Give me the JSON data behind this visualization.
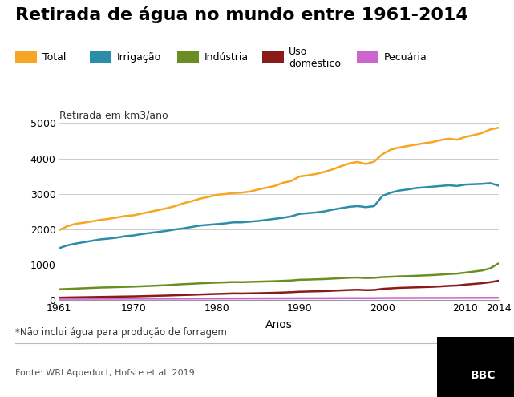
{
  "title": "Retirada de água no mundo entre 1961-2014",
  "ylabel": "Retirada em km3/ano",
  "xlabel": "Anos",
  "footnote": "*Não inclui água para produção de forragem",
  "source": "Fonte: WRI Aqueduct, Hofste et al. 2019",
  "bbc_logo": "BBC",
  "legend_labels": [
    "Total",
    "Irrigação",
    "Indústria",
    "Uso\ndoméstico",
    "Pecuária"
  ],
  "colors": {
    "Total": "#F5A623",
    "Irrigação": "#2B8DA8",
    "Indústria": "#6B8E23",
    "Uso doméstico": "#8B1A1A",
    "Pecuária": "#CC66CC"
  },
  "years": [
    1961,
    1962,
    1963,
    1964,
    1965,
    1966,
    1967,
    1968,
    1969,
    1970,
    1971,
    1972,
    1973,
    1974,
    1975,
    1976,
    1977,
    1978,
    1979,
    1980,
    1981,
    1982,
    1983,
    1984,
    1985,
    1986,
    1987,
    1988,
    1989,
    1990,
    1991,
    1992,
    1993,
    1994,
    1995,
    1996,
    1997,
    1998,
    1999,
    2000,
    2001,
    2002,
    2003,
    2004,
    2005,
    2006,
    2007,
    2008,
    2009,
    2010,
    2011,
    2012,
    2013,
    2014
  ],
  "Total": [
    1970,
    2080,
    2150,
    2180,
    2220,
    2260,
    2290,
    2330,
    2370,
    2390,
    2440,
    2490,
    2540,
    2590,
    2650,
    2730,
    2790,
    2860,
    2910,
    2970,
    2990,
    3020,
    3030,
    3060,
    3120,
    3170,
    3220,
    3310,
    3360,
    3490,
    3520,
    3560,
    3620,
    3690,
    3780,
    3860,
    3900,
    3840,
    3910,
    4120,
    4250,
    4310,
    4350,
    4390,
    4430,
    4460,
    4520,
    4560,
    4530,
    4610,
    4660,
    4720,
    4820,
    4870
  ],
  "Irrigação": [
    1460,
    1540,
    1590,
    1630,
    1670,
    1710,
    1730,
    1760,
    1800,
    1820,
    1860,
    1890,
    1920,
    1950,
    1990,
    2020,
    2060,
    2100,
    2120,
    2140,
    2160,
    2190,
    2190,
    2210,
    2230,
    2260,
    2290,
    2320,
    2360,
    2430,
    2450,
    2470,
    2500,
    2550,
    2590,
    2630,
    2650,
    2620,
    2650,
    2940,
    3030,
    3090,
    3120,
    3160,
    3180,
    3200,
    3220,
    3240,
    3220,
    3260,
    3270,
    3280,
    3300,
    3230
  ],
  "Indústria": [
    295,
    305,
    315,
    325,
    335,
    345,
    350,
    358,
    365,
    372,
    382,
    392,
    402,
    412,
    428,
    442,
    452,
    465,
    475,
    485,
    492,
    502,
    498,
    505,
    512,
    518,
    525,
    535,
    545,
    565,
    570,
    578,
    585,
    598,
    610,
    622,
    628,
    615,
    620,
    640,
    650,
    662,
    668,
    678,
    688,
    698,
    712,
    728,
    740,
    768,
    798,
    828,
    890,
    1030
  ],
  "Uso doméstico": [
    58,
    63,
    67,
    71,
    75,
    79,
    83,
    87,
    91,
    95,
    101,
    107,
    113,
    119,
    127,
    134,
    141,
    149,
    157,
    164,
    171,
    179,
    177,
    181,
    185,
    191,
    197,
    205,
    214,
    227,
    233,
    239,
    245,
    255,
    265,
    275,
    283,
    271,
    277,
    308,
    322,
    336,
    343,
    350,
    358,
    366,
    378,
    393,
    403,
    428,
    448,
    468,
    498,
    538
  ],
  "Pecuária": [
    25,
    26,
    26,
    27,
    27,
    28,
    28,
    29,
    29,
    30,
    30,
    31,
    31,
    32,
    32,
    33,
    33,
    34,
    34,
    35,
    35,
    36,
    36,
    37,
    37,
    38,
    38,
    39,
    39,
    41,
    41,
    42,
    42,
    43,
    44,
    45,
    45,
    44,
    45,
    48,
    49,
    50,
    50,
    51,
    51,
    52,
    52,
    53,
    53,
    54,
    54,
    55,
    56,
    57
  ],
  "ylim": [
    0,
    5000
  ],
  "yticks": [
    0,
    1000,
    2000,
    3000,
    4000,
    5000
  ],
  "xticks": [
    1961,
    1970,
    1980,
    1990,
    2000,
    2010,
    2014
  ],
  "background_color": "#ffffff"
}
